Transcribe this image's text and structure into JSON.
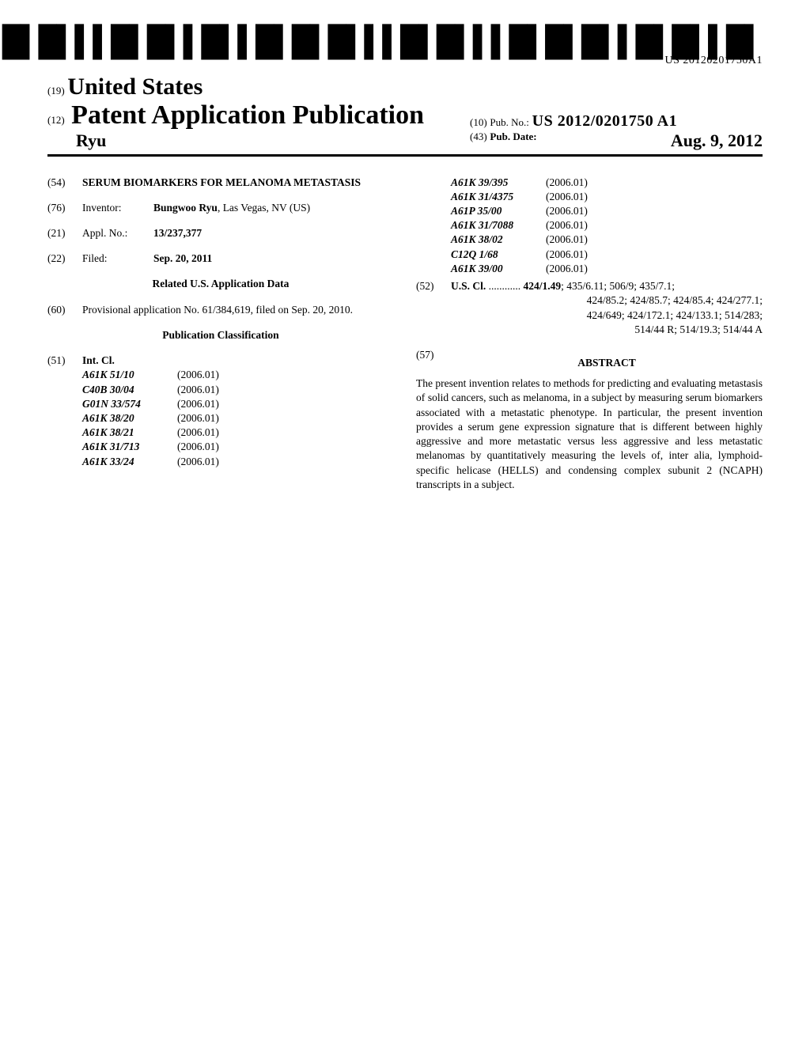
{
  "barcode": {
    "text": "US 20120201750A1"
  },
  "header": {
    "country_prefix": "(19)",
    "country": "United States",
    "pub_type_prefix": "(12)",
    "pub_type": "Patent Application Publication",
    "surname": "Ryu",
    "pub_no_prefix": "(10)",
    "pub_no_label": "Pub. No.:",
    "pub_no_value": "US 2012/0201750 A1",
    "pub_date_prefix": "(43)",
    "pub_date_label": "Pub. Date:",
    "pub_date_value": "Aug. 9, 2012"
  },
  "left_col": {
    "title_code": "(54)",
    "title": "SERUM BIOMARKERS FOR MELANOMA METASTASIS",
    "inventor_code": "(76)",
    "inventor_label": "Inventor:",
    "inventor_value": "Bungwoo Ryu",
    "inventor_loc": ", Las Vegas, NV (US)",
    "appl_code": "(21)",
    "appl_label": "Appl. No.:",
    "appl_value": "13/237,377",
    "filed_code": "(22)",
    "filed_label": "Filed:",
    "filed_value": "Sep. 20, 2011",
    "related_heading": "Related U.S. Application Data",
    "prov_code": "(60)",
    "prov_text": "Provisional application No. 61/384,619, filed on Sep. 20, 2010.",
    "pubclass_heading": "Publication Classification",
    "intcl_code": "(51)",
    "intcl_label": "Int. Cl.",
    "intcl_items_left": [
      {
        "cls": "A61K 51/10",
        "yr": "(2006.01)"
      },
      {
        "cls": "C40B 30/04",
        "yr": "(2006.01)"
      },
      {
        "cls": "G01N 33/574",
        "yr": "(2006.01)"
      },
      {
        "cls": "A61K 38/20",
        "yr": "(2006.01)"
      },
      {
        "cls": "A61K 38/21",
        "yr": "(2006.01)"
      },
      {
        "cls": "A61K 31/713",
        "yr": "(2006.01)"
      },
      {
        "cls": "A61K 33/24",
        "yr": "(2006.01)"
      }
    ]
  },
  "right_col": {
    "intcl_items_right": [
      {
        "cls": "A61K 39/395",
        "yr": "(2006.01)"
      },
      {
        "cls": "A61K 31/4375",
        "yr": "(2006.01)"
      },
      {
        "cls": "A61P 35/00",
        "yr": "(2006.01)"
      },
      {
        "cls": "A61K 31/7088",
        "yr": "(2006.01)"
      },
      {
        "cls": "A61K 38/02",
        "yr": "(2006.01)"
      },
      {
        "cls": "C12Q 1/68",
        "yr": "(2006.01)"
      },
      {
        "cls": "A61K 39/00",
        "yr": "(2006.01)"
      }
    ],
    "uscl_code": "(52)",
    "uscl_label": "U.S. Cl.",
    "uscl_dots": " ............ ",
    "uscl_first_bold": "424/1.49",
    "uscl_rest_line1": "; 435/6.11; 506/9; 435/7.1;",
    "uscl_line2": "424/85.2; 424/85.7; 424/85.4; 424/277.1;",
    "uscl_line3": "424/649; 424/172.1; 424/133.1; 514/283;",
    "uscl_line4": "514/44 R; 514/19.3; 514/44 A",
    "abstract_code": "(57)",
    "abstract_label": "ABSTRACT",
    "abstract_text": "The present invention relates to methods for predicting and evaluating metastasis of solid cancers, such as melanoma, in a subject by measuring serum biomarkers associated with a metastatic phenotype. In particular, the present invention provides a serum gene expression signature that is different between highly aggressive and more metastatic versus less aggressive and less metastatic melanomas by quantitatively measuring the levels of, inter alia, lymphoid-specific helicase (HELLS) and condensing complex subunit 2 (NCAPH) transcripts in a subject."
  }
}
